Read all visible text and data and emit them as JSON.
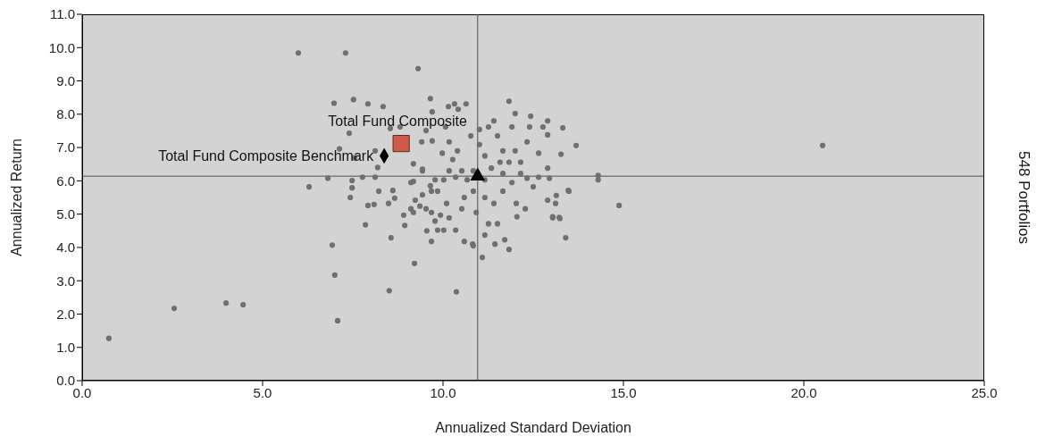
{
  "chart_data": {
    "type": "scatter",
    "xlabel": "Annualized Standard Deviation",
    "ylabel": "Annualized Return",
    "annotations": [
      "548 Portfolios"
    ],
    "xlim": [
      0,
      25
    ],
    "ylim": [
      0,
      11
    ],
    "xticks": [
      {
        "value": 0,
        "label": "0.0"
      },
      {
        "value": 5,
        "label": "5.0"
      },
      {
        "value": 10,
        "label": "10.0"
      },
      {
        "value": 15,
        "label": "15.0"
      },
      {
        "value": 20,
        "label": "20.0"
      },
      {
        "value": 25,
        "label": "25.0"
      }
    ],
    "yticks": [
      {
        "value": 0,
        "label": "0.0"
      },
      {
        "value": 1,
        "label": "1.0"
      },
      {
        "value": 2,
        "label": "2.0"
      },
      {
        "value": 3,
        "label": "3.0"
      },
      {
        "value": 4,
        "label": "4.0"
      },
      {
        "value": 5,
        "label": "5.0"
      },
      {
        "value": 6,
        "label": "6.0"
      },
      {
        "value": 7,
        "label": "7.0"
      },
      {
        "value": 8,
        "label": "8.0"
      },
      {
        "value": 9,
        "label": "9.0"
      },
      {
        "value": 10,
        "label": "10.0"
      },
      {
        "value": 11,
        "label": "11.0"
      }
    ],
    "grid": false,
    "legend": false,
    "ref_lines": [
      {
        "axis": "x",
        "value": 10.96,
        "color": "#505050"
      },
      {
        "axis": "y",
        "value": 6.14,
        "color": "#505050"
      }
    ],
    "series": [
      {
        "color": "#707070",
        "marker": "circle",
        "x": [
          0.74,
          2.55,
          3.99,
          4.46,
          5.99,
          7.3,
          9.31,
          20.52,
          14.88,
          13.69,
          14.3,
          14.3,
          13.4,
          13.47,
          13.04,
          13.22,
          8.51,
          9.21,
          10.37,
          7.08,
          7,
          6.93,
          6.29,
          11.09,
          6.98,
          7.52,
          7.92,
          8.34,
          9.65,
          10.32,
          10.64,
          11.83,
          7.4,
          7.13,
          8.12,
          8.19,
          6.81,
          7.48,
          7.48,
          7.43,
          7.92,
          8.09,
          8.22,
          8.61,
          8.66,
          8.49,
          7.85,
          8.56,
          9.68,
          8.94,
          8.91,
          9.23,
          9.53,
          9.68,
          9.18,
          9.43,
          9.18,
          9.41,
          9.7,
          9.53,
          9.7,
          10.15,
          10.42,
          10.07,
          9.98,
          10.17,
          10.27,
          10.4,
          10.17,
          10.02,
          9.85,
          10.1,
          9.93,
          10.17,
          10.35,
          10.02,
          9.85,
          9.55,
          10.59,
          10.82,
          10.84,
          11.16,
          11.44,
          11.83,
          11.71,
          11.51,
          11.26,
          10.92,
          10.52,
          10.59,
          10.84,
          11.16,
          11.41,
          11.66,
          11.91,
          12.03,
          12.28,
          12.05,
          11.16,
          11.34,
          11.66,
          11.16,
          11.01,
          11.51,
          11.66,
          12,
          12.15,
          12.33,
          11.83,
          11.58,
          11.01,
          11.26,
          11.41,
          12,
          12.43,
          11.91,
          12.4,
          12.77,
          12.9,
          13.32,
          12.9,
          12.65,
          13.27,
          12.9,
          12.65,
          12.95,
          12.5,
          13.49,
          13.14,
          12.9,
          13.12,
          13.04,
          13.24,
          12.33,
          12.15,
          10.77,
          10.84,
          10.67,
          10.52,
          10.35,
          9.78,
          9.65,
          9.43,
          9.11,
          9.18,
          9.36,
          9.43,
          9.11,
          9.68,
          9.78,
          8.81,
          8.54,
          7.55,
          7.77,
          8.12
        ],
        "values": [
          1.27,
          2.17,
          2.33,
          2.28,
          9.84,
          9.84,
          9.37,
          7.06,
          5.26,
          7.06,
          6.16,
          6.03,
          4.29,
          5.71,
          4.92,
          4.9,
          2.7,
          3.52,
          2.67,
          1.8,
          3.17,
          4.07,
          5.82,
          3.7,
          8.33,
          8.44,
          8.31,
          8.23,
          8.47,
          8.31,
          8.31,
          8.39,
          7.43,
          6.96,
          6.9,
          6.4,
          6.08,
          6.01,
          5.79,
          5.5,
          5.26,
          5.29,
          5.69,
          5.71,
          5.48,
          5.32,
          4.68,
          4.29,
          4.18,
          4.66,
          4.97,
          5.42,
          5.16,
          5.69,
          5.98,
          6.35,
          6.51,
          7.17,
          7.2,
          7.51,
          8.07,
          8.23,
          8.15,
          7.62,
          6.83,
          7.17,
          6.64,
          6.9,
          6.3,
          6.03,
          5.69,
          5.32,
          4.97,
          4.89,
          4.52,
          4.52,
          4.52,
          4.5,
          4.18,
          4.1,
          4.05,
          4.37,
          4.1,
          3.94,
          4.23,
          4.71,
          4.71,
          5.05,
          5.16,
          5.5,
          5.69,
          5.5,
          5.32,
          5.69,
          5.95,
          5.32,
          5.16,
          4.92,
          6.03,
          6.38,
          6.22,
          6.75,
          7.09,
          7.35,
          6.9,
          6.9,
          6.56,
          7.17,
          6.56,
          6.56,
          7.54,
          7.62,
          7.8,
          8.02,
          7.94,
          7.62,
          7.62,
          7.62,
          7.8,
          7.59,
          7.38,
          6.83,
          6.8,
          6.38,
          6.11,
          6.08,
          5.82,
          5.69,
          5.56,
          5.42,
          5.32,
          4.89,
          4.87,
          6.08,
          6.22,
          7.35,
          6.3,
          6.03,
          6.3,
          6.11,
          6.03,
          5.85,
          5.58,
          5.95,
          5.05,
          5.24,
          6.3,
          5.16,
          5.05,
          4.79,
          7.62,
          7.57,
          6.69,
          6.11,
          6.11
        ]
      },
      {
        "name": "Total Fund Composite",
        "color": "#d05a48",
        "marker": "square",
        "x": [
          8.84
        ],
        "values": [
          7.12
        ]
      },
      {
        "name": "Total Fund Composite Benchmark",
        "color": "#000000",
        "marker": "diamond",
        "x": [
          8.37
        ],
        "values": [
          6.75
        ]
      },
      {
        "color": "#000000",
        "marker": "triangle",
        "x": [
          10.96
        ],
        "values": [
          6.14
        ]
      }
    ]
  }
}
